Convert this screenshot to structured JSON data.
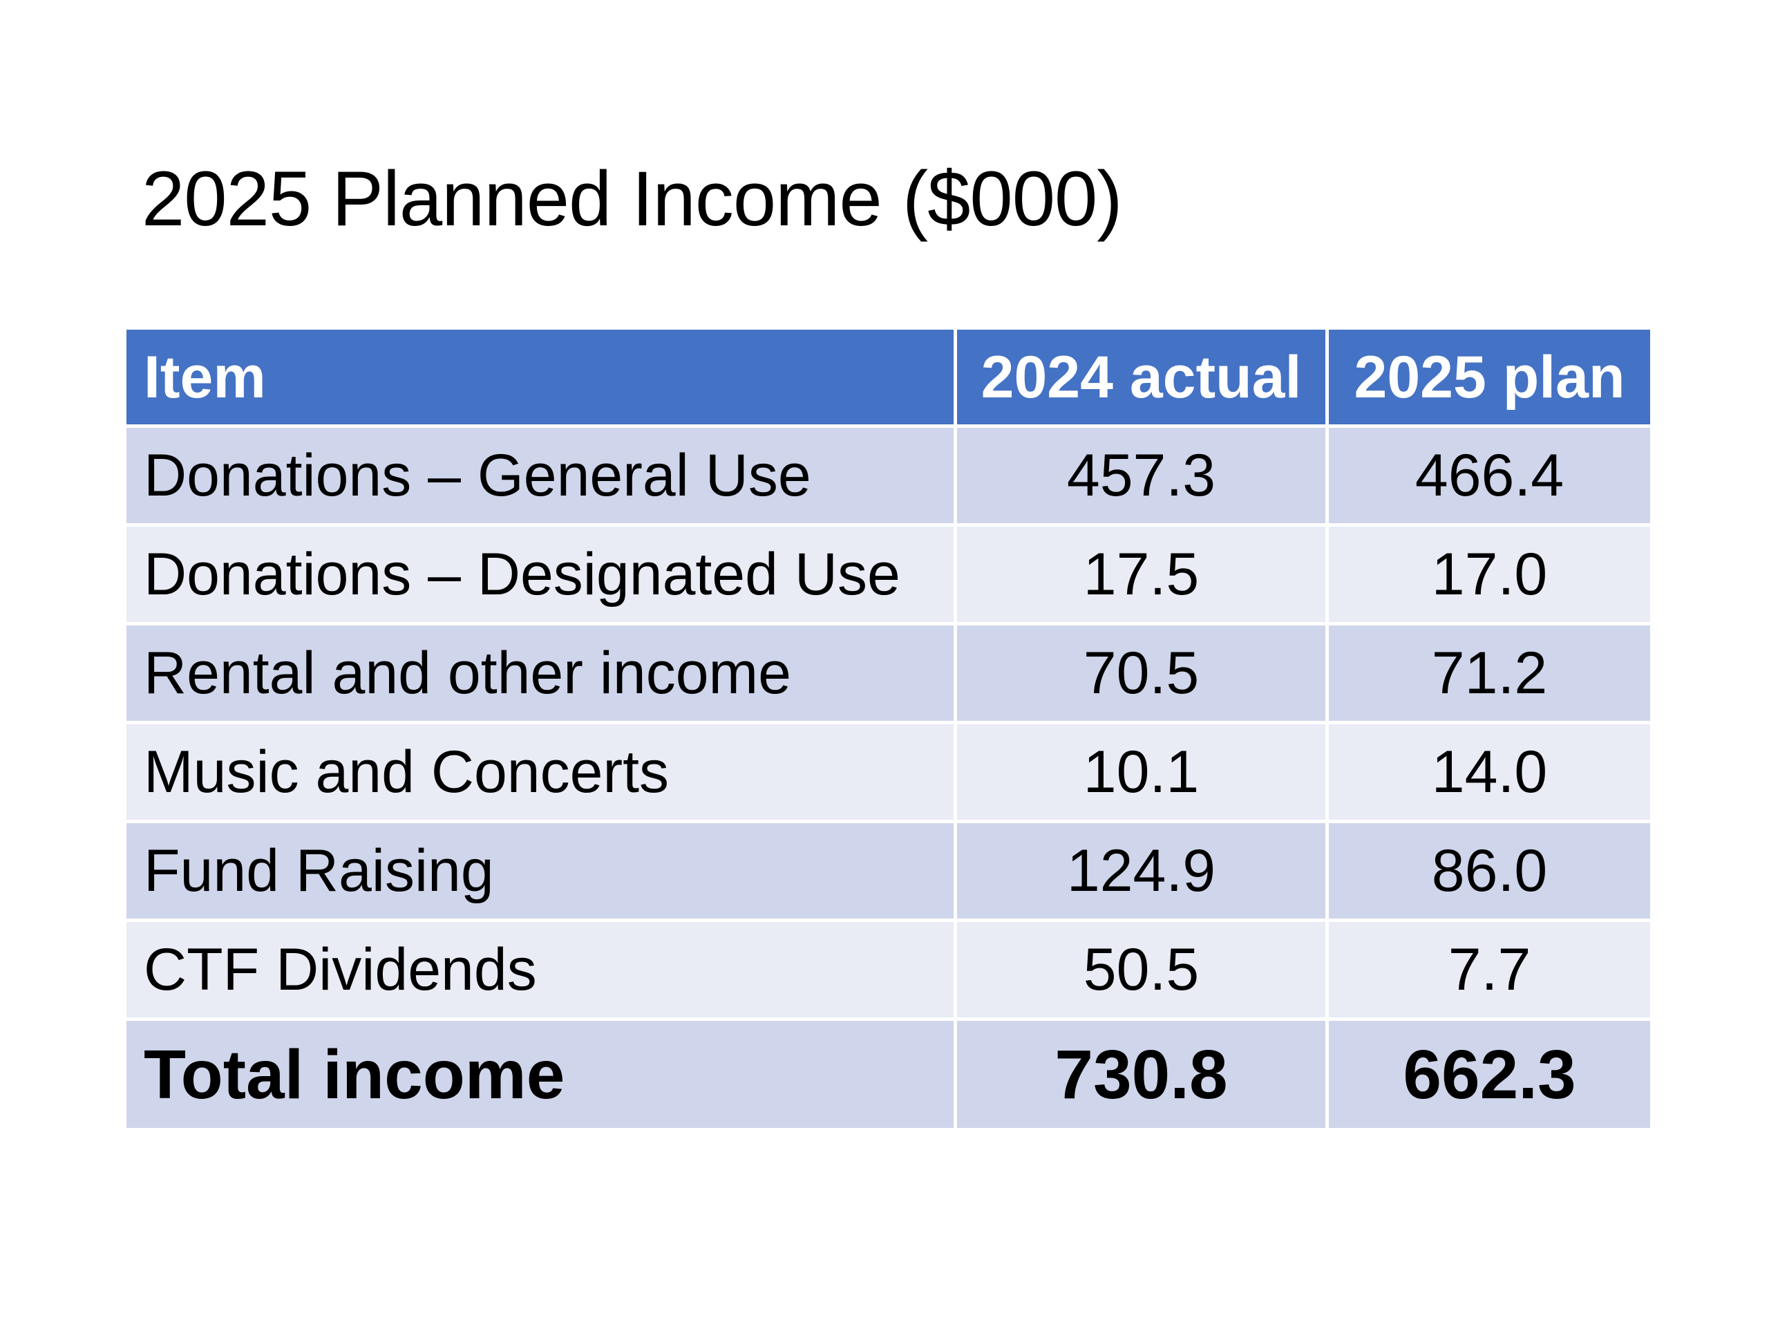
{
  "slide": {
    "title": "2025 Planned Income ($000)"
  },
  "table": {
    "headers": [
      "Item",
      "2024 actual",
      "2025 plan"
    ],
    "rows": [
      [
        "Donations – General Use",
        "457.3",
        "466.4"
      ],
      [
        "Donations – Designated Use",
        "17.5",
        "17.0"
      ],
      [
        "Rental and other income",
        "70.5",
        "71.2"
      ],
      [
        "Music and Concerts",
        "10.1",
        "14.0"
      ],
      [
        "Fund Raising",
        "124.9",
        "86.0"
      ],
      [
        "CTF Dividends",
        "50.5",
        "7.7"
      ]
    ],
    "total": [
      "Total income",
      "730.8",
      "662.3"
    ]
  },
  "colors": {
    "header_background": "#4472c4",
    "header_text": "#ffffff",
    "row_band_dark": "#cfd5ea",
    "row_band_light": "#e9ebf5"
  }
}
